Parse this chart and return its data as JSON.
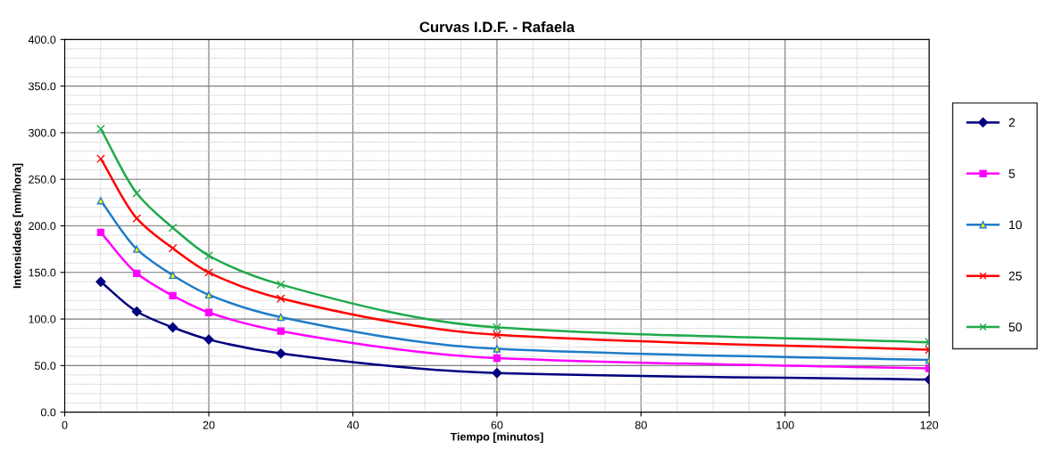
{
  "chart_data": {
    "type": "line",
    "title": "Curvas I.D.F. - Rafaela",
    "xlabel": "Tiempo [minutos]",
    "ylabel": "Intensidades [mm/hora]",
    "x": [
      5,
      10,
      15,
      20,
      30,
      60,
      120
    ],
    "series": [
      {
        "name": "2",
        "color": "#000080",
        "marker": "diamond",
        "values": [
          140,
          108,
          91,
          78,
          63,
          42,
          35
        ]
      },
      {
        "name": "5",
        "color": "#ff00ff",
        "marker": "square",
        "values": [
          193,
          149,
          125,
          107,
          87,
          58,
          47
        ]
      },
      {
        "name": "10",
        "color": "#1f7bc8",
        "marker": "triangle",
        "values": [
          227,
          175,
          147,
          126,
          102,
          68,
          56
        ]
      },
      {
        "name": "25",
        "color": "#ff0000",
        "marker": "cross",
        "values": [
          272,
          208,
          176,
          150,
          122,
          83,
          67
        ]
      },
      {
        "name": "50",
        "color": "#1faa4a",
        "marker": "cross",
        "values": [
          304,
          235,
          198,
          168,
          137,
          91,
          75
        ]
      }
    ],
    "xlim": [
      0,
      120
    ],
    "xticks": [
      0,
      20,
      40,
      60,
      80,
      100,
      120
    ],
    "ylim": [
      0,
      400
    ],
    "yticks": [
      {
        "value": 0,
        "label": "0.0"
      },
      {
        "value": 50,
        "label": "50.0"
      },
      {
        "value": 100,
        "label": "100.0"
      },
      {
        "value": 150,
        "label": "150.0"
      },
      {
        "value": 200,
        "label": "200.0"
      },
      {
        "value": 250,
        "label": "250.0"
      },
      {
        "value": 300,
        "label": "300.0"
      },
      {
        "value": 350,
        "label": "350.0"
      },
      {
        "value": 400,
        "label": "400.0"
      }
    ],
    "grid": true,
    "legend": "right",
    "line_style": "solid"
  }
}
